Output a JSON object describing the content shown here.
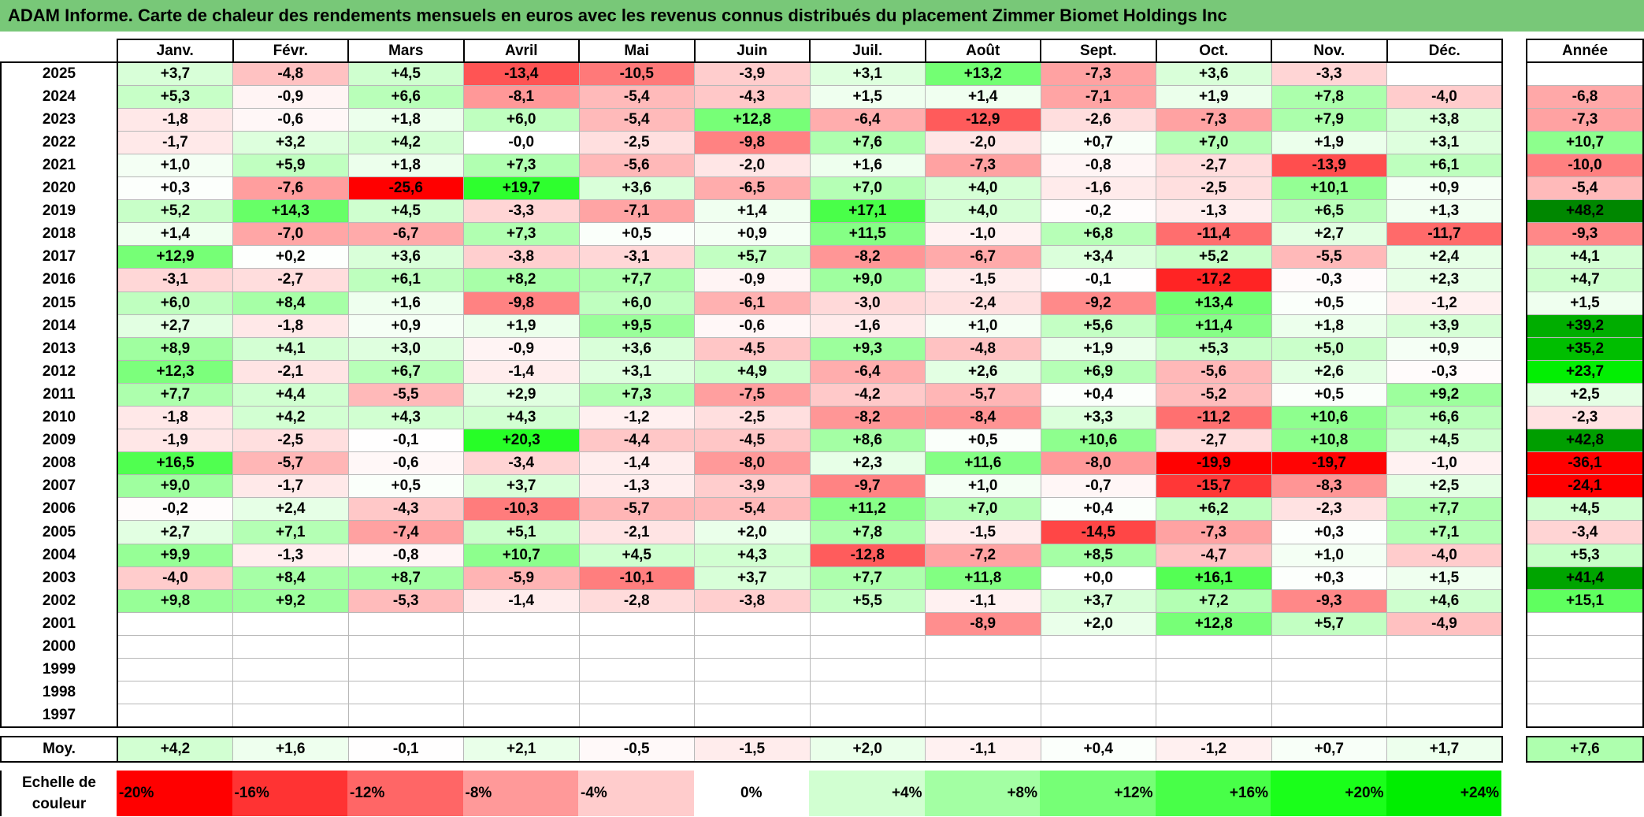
{
  "title": "ADAM Informe. Carte de chaleur des rendements mensuels en euros avec les revenus connus distribués du placement Zimmer Biomet Holdings Inc",
  "colors": {
    "title_bg": "#78c878"
  },
  "chart_data": {
    "type": "heatmap",
    "title": "ADAM Informe. Carte de chaleur des rendements mensuels en euros avec les revenus connus distribués du placement Zimmer Biomet Holdings Inc",
    "columns": [
      "Janv.",
      "Févr.",
      "Mars",
      "Avril",
      "Mai",
      "Juin",
      "Juil.",
      "Août",
      "Sept.",
      "Oct.",
      "Nov.",
      "Déc."
    ],
    "year_header": "Année",
    "rows": [
      {
        "year": "2025",
        "values": [
          3.7,
          -4.8,
          4.5,
          -13.4,
          -10.5,
          -3.9,
          3.1,
          13.2,
          -7.3,
          3.6,
          -3.3,
          null
        ],
        "annual": null
      },
      {
        "year": "2024",
        "values": [
          5.3,
          -0.9,
          6.6,
          -8.1,
          -5.4,
          -4.3,
          1.5,
          1.4,
          -7.1,
          1.9,
          7.8,
          -4.0
        ],
        "annual": -6.8
      },
      {
        "year": "2023",
        "values": [
          -1.8,
          -0.6,
          1.8,
          6.0,
          -5.4,
          12.8,
          -6.4,
          -12.9,
          -2.6,
          -7.3,
          7.9,
          3.8
        ],
        "annual": -7.3
      },
      {
        "year": "2022",
        "values": [
          -1.7,
          3.2,
          4.2,
          "-0,0",
          -2.5,
          -9.8,
          7.6,
          -2.0,
          0.7,
          7.0,
          1.9,
          3.1
        ],
        "annual": 10.7
      },
      {
        "year": "2021",
        "values": [
          1.0,
          5.9,
          1.8,
          7.3,
          -5.6,
          -2.0,
          1.6,
          -7.3,
          -0.8,
          -2.7,
          -13.9,
          6.1
        ],
        "annual": -10.0
      },
      {
        "year": "2020",
        "values": [
          0.3,
          -7.6,
          -25.6,
          19.7,
          3.6,
          -6.5,
          7.0,
          4.0,
          -1.6,
          -2.5,
          10.1,
          0.9
        ],
        "annual": -5.4
      },
      {
        "year": "2019",
        "values": [
          5.2,
          14.3,
          4.5,
          -3.3,
          -7.1,
          1.4,
          17.1,
          4.0,
          -0.2,
          -1.3,
          6.5,
          1.3
        ],
        "annual": 48.2
      },
      {
        "year": "2018",
        "values": [
          1.4,
          -7.0,
          -6.7,
          7.3,
          0.5,
          0.9,
          11.5,
          -1.0,
          6.8,
          -11.4,
          2.7,
          -11.7
        ],
        "annual": -9.3
      },
      {
        "year": "2017",
        "values": [
          12.9,
          0.2,
          3.6,
          -3.8,
          -3.1,
          5.7,
          -8.2,
          -6.7,
          3.4,
          5.2,
          -5.5,
          2.4
        ],
        "annual": 4.1
      },
      {
        "year": "2016",
        "values": [
          -3.1,
          -2.7,
          6.1,
          8.2,
          7.7,
          -0.9,
          9.0,
          -1.5,
          -0.1,
          -17.2,
          -0.3,
          2.3
        ],
        "annual": 4.7
      },
      {
        "year": "2015",
        "values": [
          6.0,
          8.4,
          1.6,
          -9.8,
          6.0,
          -6.1,
          -3.0,
          -2.4,
          -9.2,
          13.4,
          0.5,
          -1.2
        ],
        "annual": 1.5
      },
      {
        "year": "2014",
        "values": [
          2.7,
          -1.8,
          0.9,
          1.9,
          9.5,
          -0.6,
          -1.6,
          1.0,
          5.6,
          11.4,
          1.8,
          3.9
        ],
        "annual": 39.2
      },
      {
        "year": "2013",
        "values": [
          8.9,
          4.1,
          3.0,
          -0.9,
          3.6,
          -4.5,
          9.3,
          -4.8,
          1.9,
          5.3,
          5.0,
          0.9
        ],
        "annual": 35.2
      },
      {
        "year": "2012",
        "values": [
          12.3,
          -2.1,
          6.7,
          -1.4,
          3.1,
          4.9,
          -6.4,
          2.6,
          6.9,
          -5.6,
          2.6,
          -0.3
        ],
        "annual": 23.7
      },
      {
        "year": "2011",
        "values": [
          7.7,
          4.4,
          -5.5,
          2.9,
          7.3,
          -7.5,
          -4.2,
          -5.7,
          0.4,
          -5.2,
          0.5,
          9.2
        ],
        "annual": 2.5
      },
      {
        "year": "2010",
        "values": [
          -1.8,
          4.2,
          4.3,
          4.3,
          -1.2,
          -2.5,
          -8.2,
          -8.4,
          3.3,
          -11.2,
          10.6,
          6.6
        ],
        "annual": -2.3
      },
      {
        "year": "2009",
        "values": [
          -1.9,
          -2.5,
          -0.1,
          20.3,
          -4.4,
          -4.5,
          8.6,
          0.5,
          10.6,
          -2.7,
          10.8,
          4.5
        ],
        "annual": 42.8
      },
      {
        "year": "2008",
        "values": [
          16.5,
          -5.7,
          -0.6,
          -3.4,
          -1.4,
          -8.0,
          2.3,
          11.6,
          -8.0,
          -19.9,
          -19.7,
          -1.0
        ],
        "annual": -36.1
      },
      {
        "year": "2007",
        "values": [
          9.0,
          -1.7,
          0.5,
          3.7,
          -1.3,
          -3.9,
          -9.7,
          1.0,
          -0.7,
          -15.7,
          -8.3,
          2.5
        ],
        "annual": -24.1
      },
      {
        "year": "2006",
        "values": [
          -0.2,
          2.4,
          -4.3,
          -10.3,
          -5.7,
          -5.4,
          11.2,
          7.0,
          0.4,
          6.2,
          -2.3,
          7.7
        ],
        "annual": 4.5
      },
      {
        "year": "2005",
        "values": [
          2.7,
          7.1,
          -7.4,
          5.1,
          -2.1,
          2.0,
          7.8,
          -1.5,
          -14.5,
          -7.3,
          0.3,
          7.1
        ],
        "annual": -3.4
      },
      {
        "year": "2004",
        "values": [
          9.9,
          -1.3,
          -0.8,
          10.7,
          4.5,
          4.3,
          -12.8,
          -7.2,
          8.5,
          -4.7,
          1.0,
          -4.0
        ],
        "annual": 5.3
      },
      {
        "year": "2003",
        "values": [
          -4.0,
          8.4,
          8.7,
          -5.9,
          -10.1,
          3.7,
          7.7,
          11.8,
          0.0,
          16.1,
          0.3,
          1.5
        ],
        "annual": 41.4
      },
      {
        "year": "2002",
        "values": [
          9.8,
          9.2,
          -5.3,
          -1.4,
          -2.8,
          -3.8,
          5.5,
          -1.1,
          3.7,
          7.2,
          -9.3,
          4.6
        ],
        "annual": 15.1
      },
      {
        "year": "2001",
        "values": [
          null,
          null,
          null,
          null,
          null,
          null,
          null,
          -8.9,
          2.0,
          12.8,
          5.7,
          -4.9
        ],
        "annual": null
      },
      {
        "year": "2000",
        "values": [
          null,
          null,
          null,
          null,
          null,
          null,
          null,
          null,
          null,
          null,
          null,
          null
        ],
        "annual": null
      },
      {
        "year": "1999",
        "values": [
          null,
          null,
          null,
          null,
          null,
          null,
          null,
          null,
          null,
          null,
          null,
          null
        ],
        "annual": null
      },
      {
        "year": "1998",
        "values": [
          null,
          null,
          null,
          null,
          null,
          null,
          null,
          null,
          null,
          null,
          null,
          null
        ],
        "annual": null
      },
      {
        "year": "1997",
        "values": [
          null,
          null,
          null,
          null,
          null,
          null,
          null,
          null,
          null,
          null,
          null,
          null
        ],
        "annual": null
      }
    ],
    "average_label": "Moy.",
    "average_values": [
      4.2,
      1.6,
      -0.1,
      2.1,
      -0.5,
      -1.5,
      2.0,
      -1.1,
      0.4,
      -1.2,
      0.7,
      1.7
    ],
    "average_annual": 7.6,
    "scale_label": "Echelle de couleur",
    "scale_steps": [
      {
        "label": "-20%",
        "value": -20,
        "color": "#ff0000"
      },
      {
        "label": "-16%",
        "value": -16,
        "color": "#ff3333"
      },
      {
        "label": "-12%",
        "value": -12,
        "color": "#ff6666"
      },
      {
        "label": "-8%",
        "value": -8,
        "color": "#ff9999"
      },
      {
        "label": "-4%",
        "value": -4,
        "color": "#ffcccc"
      },
      {
        "label": "0%",
        "value": 0,
        "color": "#ffffff"
      },
      {
        "label": "+4%",
        "value": 4,
        "color": "#d1ffd1"
      },
      {
        "label": "+8%",
        "value": 8,
        "color": "#a3ffa3"
      },
      {
        "label": "+12%",
        "value": 12,
        "color": "#76ff76"
      },
      {
        "label": "+16%",
        "value": 16,
        "color": "#48ff48"
      },
      {
        "label": "+20%",
        "value": 20,
        "color": "#1aff1a"
      },
      {
        "label": "+24%",
        "value": 24,
        "color": "#00ee00"
      }
    ]
  }
}
